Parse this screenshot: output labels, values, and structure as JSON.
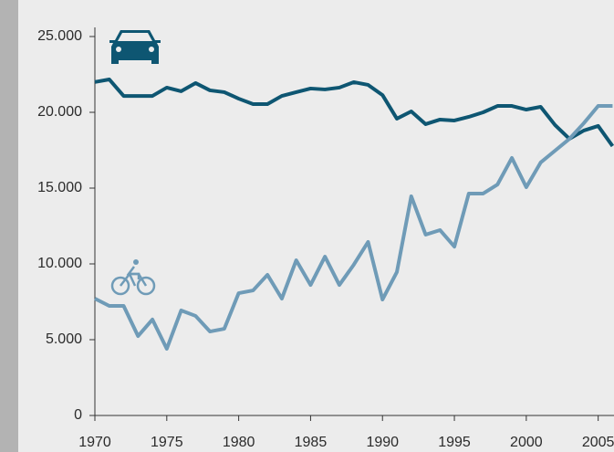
{
  "chart_data": {
    "type": "line",
    "x": [
      1970,
      1971,
      1972,
      1973,
      1974,
      1975,
      1976,
      1977,
      1978,
      1979,
      1980,
      1981,
      1982,
      1983,
      1984,
      1985,
      1986,
      1987,
      1988,
      1989,
      1990,
      1991,
      1992,
      1993,
      1994,
      1995,
      1996,
      1997,
      1998,
      1999,
      2000,
      2001,
      2002,
      2003,
      2004,
      2005,
      2006
    ],
    "series": [
      {
        "color": "#0e5672",
        "values": [
          22000,
          22170,
          21080,
          21080,
          21080,
          21630,
          21390,
          21930,
          21450,
          21330,
          20900,
          20540,
          20540,
          21080,
          21330,
          21570,
          21510,
          21630,
          21990,
          21810,
          21140,
          19580,
          20060,
          19220,
          19520,
          19460,
          19700,
          20000,
          20420,
          20420,
          20180,
          20360,
          19160,
          18250,
          18800,
          19100,
          17770
        ]
      },
      {
        "color": "#6f9bb7",
        "values": [
          7710,
          7230,
          7230,
          5240,
          6330,
          4400,
          6930,
          6570,
          5540,
          5720,
          8070,
          8250,
          9280,
          7710,
          10240,
          8610,
          10480,
          8610,
          9940,
          11450,
          7650,
          9460,
          14460,
          11930,
          12230,
          11140,
          14640,
          14640,
          15240,
          16990,
          15060,
          16690,
          17470,
          18250,
          19280,
          20420,
          20420
        ]
      }
    ],
    "xlim": [
      1970,
      2006.1
    ],
    "xticks": [
      1970,
      1975,
      1980,
      1985,
      1990,
      1995,
      2000,
      2005
    ],
    "ylim": [
      0,
      25000
    ],
    "yticks": [
      0,
      {
        "value": 5000,
        "label": "5.000"
      },
      {
        "value": 10000,
        "label": "10.000"
      },
      {
        "value": 15000,
        "label": "15.000"
      },
      {
        "value": 20000,
        "label": "20.000"
      },
      {
        "value": 25000,
        "label": "25.000"
      }
    ]
  }
}
